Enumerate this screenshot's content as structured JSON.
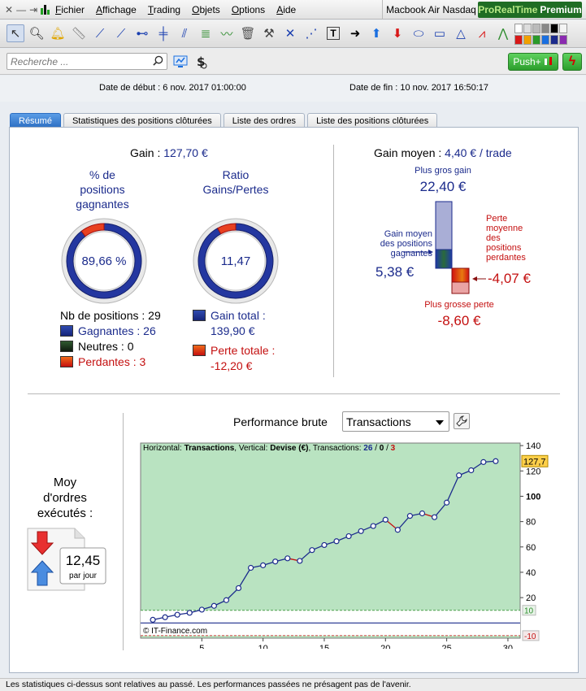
{
  "menubar": {
    "items": [
      "Fichier",
      "Affichage",
      "Trading",
      "Objets",
      "Options",
      "Aide"
    ],
    "instrument": "Macbook Air Nasdaq",
    "brand_prefix": "ProRealTime",
    "brand_suffix": "Premium"
  },
  "search": {
    "placeholder": "Recherche ..."
  },
  "push_button": "Push+",
  "dates": {
    "start": "Date de début :  6 nov. 2017 01:00:00",
    "end": "Date de fin :  10 nov. 2017 16:50:17"
  },
  "tabs": [
    "Résumé",
    "Statistiques des positions clôturées",
    "Liste des ordres",
    "Liste des positions clôturées"
  ],
  "summary": {
    "gain_label": "Gain :",
    "gain_value": "127,70 €",
    "pct_title_1": "% de",
    "pct_title_2": "positions",
    "pct_title_3": "gagnantes",
    "pct_value": "89,66 %",
    "pct_winning": 89.66,
    "ratio_title_1": "Ratio",
    "ratio_title_2": "Gains/Pertes",
    "ratio_value": "11,47",
    "ratio_gain_share": 0.9198,
    "nb_positions": "Nb de positions : 29",
    "winning": "Gagnantes : 26",
    "neutral": "Neutres : 0",
    "losing": "Perdantes : 3",
    "gain_total_label": "Gain total :",
    "gain_total_value": "139,90 €",
    "loss_total_label": "Perte totale :",
    "loss_total_value": "-12,20 €"
  },
  "avg": {
    "label": "Gain moyen :",
    "value": "4,40 € / trade",
    "biggest_gain_label": "Plus gros gain",
    "biggest_gain_value": "22,40 €",
    "avg_gain_label_1": "Gain moyen",
    "avg_gain_label_2": "des positions",
    "avg_gain_label_3": "gagnantes",
    "avg_gain_value": "5,38 €",
    "avg_loss_label_1": "Perte",
    "avg_loss_label_2": "moyenne",
    "avg_loss_label_3": "des",
    "avg_loss_label_4": "positions",
    "avg_loss_label_5": "perdantes",
    "avg_loss_value": "-4,07 €",
    "biggest_loss_label": "Plus grosse perte",
    "biggest_loss_value": "-8,60 €"
  },
  "orders": {
    "title_1": "Moy",
    "title_2": "d'ordres",
    "title_3": "exécutés :",
    "value": "12,45",
    "unit": "par jour"
  },
  "performance": {
    "title": "Performance brute",
    "select_value": "Transactions"
  },
  "chart_data": {
    "type": "line",
    "info_h_label": "Horizontal:",
    "info_h_value": "Transactions",
    "info_v_label": "Vertical:",
    "info_v_value": "Devise (€)",
    "info_t_label": "Transactions:",
    "info_t_win": "26",
    "info_t_neutral": "0",
    "info_t_loss": "3",
    "watermark": "© IT-Finance.com",
    "x": [
      1,
      2,
      3,
      4,
      5,
      6,
      7,
      8,
      9,
      10,
      11,
      12,
      13,
      14,
      15,
      16,
      17,
      18,
      19,
      20,
      21,
      22,
      23,
      24,
      25,
      26,
      27,
      28,
      29
    ],
    "y": [
      2.5,
      4.5,
      6.5,
      8.0,
      10.5,
      13.5,
      18.0,
      27.5,
      43.5,
      45.5,
      48.5,
      51.0,
      49.0,
      57.5,
      61.5,
      64.5,
      68.5,
      72.5,
      76.5,
      81.5,
      73.5,
      84.5,
      86.5,
      83.5,
      95.0,
      116.5,
      120.5,
      127.0,
      127.7
    ],
    "x_ticks": [
      5,
      10,
      15,
      20,
      25,
      30
    ],
    "y_ticks": [
      20,
      40,
      60,
      80,
      100,
      120,
      140
    ],
    "xlim": [
      0,
      31
    ],
    "ylim": [
      -12,
      142
    ],
    "current_label": "127,7",
    "upper_band": 10,
    "upper_band_label": "10",
    "lower_band": -10,
    "lower_band_label": "-10",
    "colors": {
      "bg": "#b9e3c1",
      "line": "#1b2b8c",
      "loss": "#c41010",
      "marker": "#1b2b8c",
      "current": "#ffd04a"
    }
  },
  "footer": "Les statistiques ci-dessus sont relatives au passé. Les performances passées ne présagent pas de l'avenir."
}
